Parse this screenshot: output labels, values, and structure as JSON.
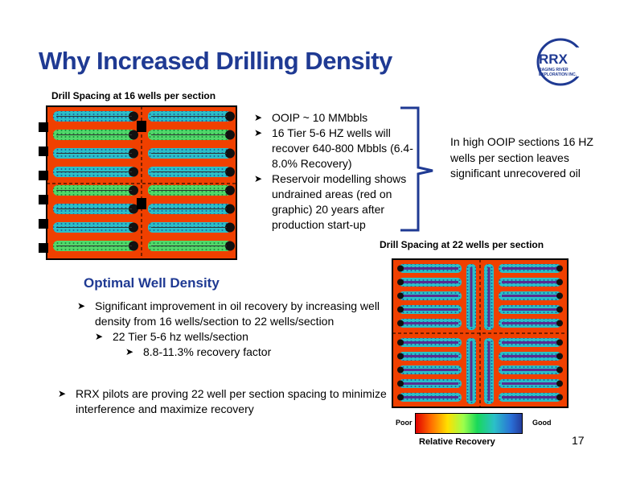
{
  "title": "Why Increased Drilling Density",
  "logo": {
    "name": "RRX",
    "subtitle_line1": "RAGING RIVER",
    "subtitle_line2": "EXPLORATION INC."
  },
  "caption_16": "Drill Spacing at 16 wells per section",
  "caption_22": "Drill Spacing at 22 wells per section",
  "top_bullets": [
    "OOIP ~ 10 MMbbls",
    "16 Tier 5-6 HZ wells will recover 640-800 Mbbls (6.4-8.0% Recovery)",
    "Reservoir modelling shows undrained areas (red on graphic) 20 years after production start-up"
  ],
  "callout": "In high OOIP sections 16 HZ wells per section leaves significant unrecovered oil",
  "optimal": {
    "heading": "Optimal Well Density",
    "level1": "Significant improvement in oil recovery by increasing well density from 16 wells/section to 22 wells/section",
    "level2": "22 Tier 5-6 hz wells/section",
    "level3": "8.8-11.3% recovery factor"
  },
  "pilot": "RRX pilots are proving 22 well per section spacing to minimize interference and maximize recovery",
  "legend": {
    "poor": "Poor",
    "good": "Good",
    "label": "Relative Recovery"
  },
  "page_number": "17",
  "colors": {
    "title": "#1f3a93",
    "undrained": "#e00000",
    "drained": "#2bc0c8"
  }
}
